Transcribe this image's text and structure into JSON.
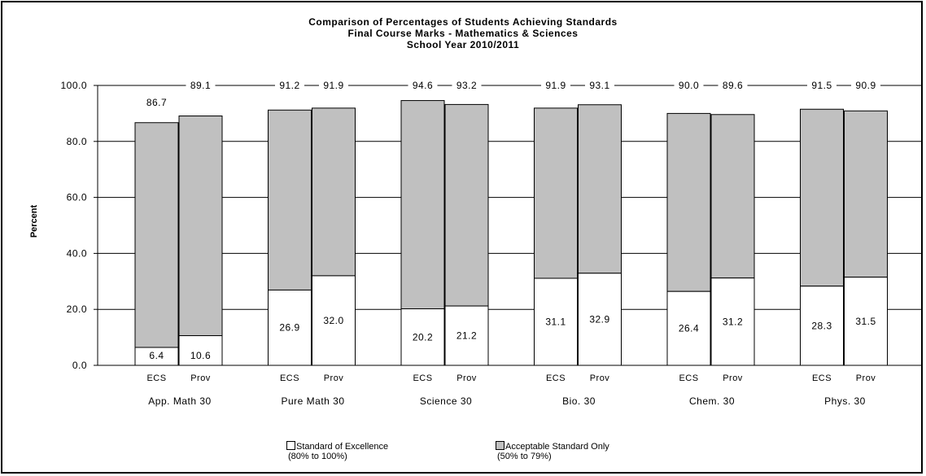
{
  "chart_data": {
    "type": "bar",
    "title": "Comparison of Percentages of Students Achieving Standards",
    "subtitle": "Final Course Marks - Mathematics & Sciences",
    "subtitle2": "School Year 2010/2011",
    "ylabel": "Percent",
    "ylim": [
      0,
      100
    ],
    "yticks": [
      "100.0",
      "80.0",
      "60.0",
      "40.0",
      "20.0",
      "0.0"
    ],
    "grid": true,
    "stacked": true,
    "groups": [
      {
        "course": "App. Math 30",
        "bars": [
          {
            "label": "ECS",
            "excellence": 6.4,
            "total": 86.7
          },
          {
            "label": "Prov",
            "excellence": 10.6,
            "total": 89.1
          }
        ]
      },
      {
        "course": "Pure Math 30",
        "bars": [
          {
            "label": "ECS",
            "excellence": 26.9,
            "total": 91.2
          },
          {
            "label": "Prov",
            "excellence": 32.0,
            "total": 91.9
          }
        ]
      },
      {
        "course": "Science 30",
        "bars": [
          {
            "label": "ECS",
            "excellence": 20.2,
            "total": 94.6
          },
          {
            "label": "Prov",
            "excellence": 21.2,
            "total": 93.2
          }
        ]
      },
      {
        "course": "Bio. 30",
        "bars": [
          {
            "label": "ECS",
            "excellence": 31.1,
            "total": 91.9
          },
          {
            "label": "Prov",
            "excellence": 32.9,
            "total": 93.1
          }
        ]
      },
      {
        "course": "Chem. 30",
        "bars": [
          {
            "label": "ECS",
            "excellence": 26.4,
            "total": 90.0
          },
          {
            "label": "Prov",
            "excellence": 31.2,
            "total": 89.6
          }
        ]
      },
      {
        "course": "Phys. 30",
        "bars": [
          {
            "label": "ECS",
            "excellence": 28.3,
            "total": 91.5
          },
          {
            "label": "Prov",
            "excellence": 31.5,
            "total": 90.9
          }
        ]
      }
    ],
    "series": [
      {
        "name": "Standard of Excellence",
        "note": "(80% to 100%)",
        "color": "#ffffff"
      },
      {
        "name": "Acceptable Standard Only",
        "note": "(50% to 79%)",
        "color": "#c0c0c0"
      }
    ],
    "legend_position": "bottom"
  }
}
